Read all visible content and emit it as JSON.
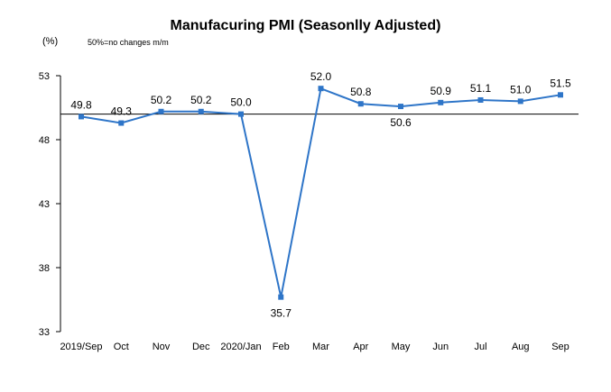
{
  "chart_data": {
    "type": "line",
    "title": "Manufacuring PMI (Seasonlly Adjusted)",
    "unit_label": "(%)",
    "note": "50%=no changes  m/m",
    "categories": [
      "2019/Sep",
      "Oct",
      "Nov",
      "Dec",
      "2020/Jan",
      "Feb",
      "Mar",
      "Apr",
      "May",
      "Jun",
      "Jul",
      "Aug",
      "Sep"
    ],
    "series": [
      {
        "values": [
          49.8,
          49.3,
          50.2,
          50.2,
          50.0,
          35.7,
          52.0,
          50.8,
          50.6,
          50.9,
          51.1,
          51.0,
          51.5
        ]
      }
    ],
    "data_labels": [
      "49.8",
      "49.3",
      "50.2",
      "50.2",
      "50.0",
      "35.7",
      "52.0",
      "50.8",
      "50.6",
      "50.9",
      "51.1",
      "51.0",
      "51.5"
    ],
    "yticks": [
      33,
      38,
      43,
      48,
      53
    ],
    "ylim": [
      33,
      53
    ],
    "baseline": 50,
    "line_color": "#2e75c8",
    "grid": false,
    "legend": "none"
  }
}
